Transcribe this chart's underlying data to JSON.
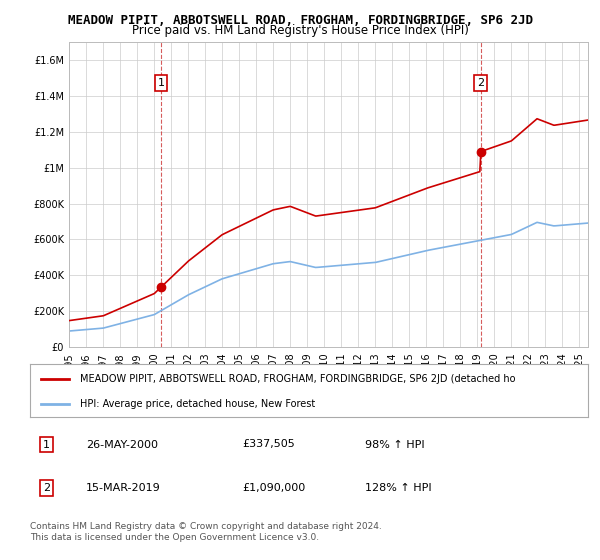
{
  "title": "MEADOW PIPIT, ABBOTSWELL ROAD, FROGHAM, FORDINGBRIDGE, SP6 2JD",
  "subtitle": "Price paid vs. HM Land Registry's House Price Index (HPI)",
  "hpi_label": "HPI: Average price, detached house, New Forest",
  "price_label": "MEADOW PIPIT, ABBOTSWELL ROAD, FROGHAM, FORDINGBRIDGE, SP6 2JD (detached ho",
  "footnote1": "Contains HM Land Registry data © Crown copyright and database right 2024.",
  "footnote2": "This data is licensed under the Open Government Licence v3.0.",
  "marker1_date": "26-MAY-2000",
  "marker1_price": "£337,505",
  "marker1_hpi": "98% ↑ HPI",
  "marker1_year": 2000.4,
  "marker1_value": 337505,
  "marker2_date": "15-MAR-2019",
  "marker2_price": "£1,090,000",
  "marker2_hpi": "128% ↑ HPI",
  "marker2_year": 2019.2,
  "marker2_value": 1090000,
  "ylim_max": 1700000,
  "xlim_min": 1995,
  "xlim_max": 2025.5,
  "hpi_color": "#7fb2e5",
  "price_color": "#cc0000",
  "background_color": "#ffffff",
  "grid_color": "#cccccc",
  "yticks": [
    0,
    200000,
    400000,
    600000,
    800000,
    1000000,
    1200000,
    1400000,
    1600000
  ]
}
